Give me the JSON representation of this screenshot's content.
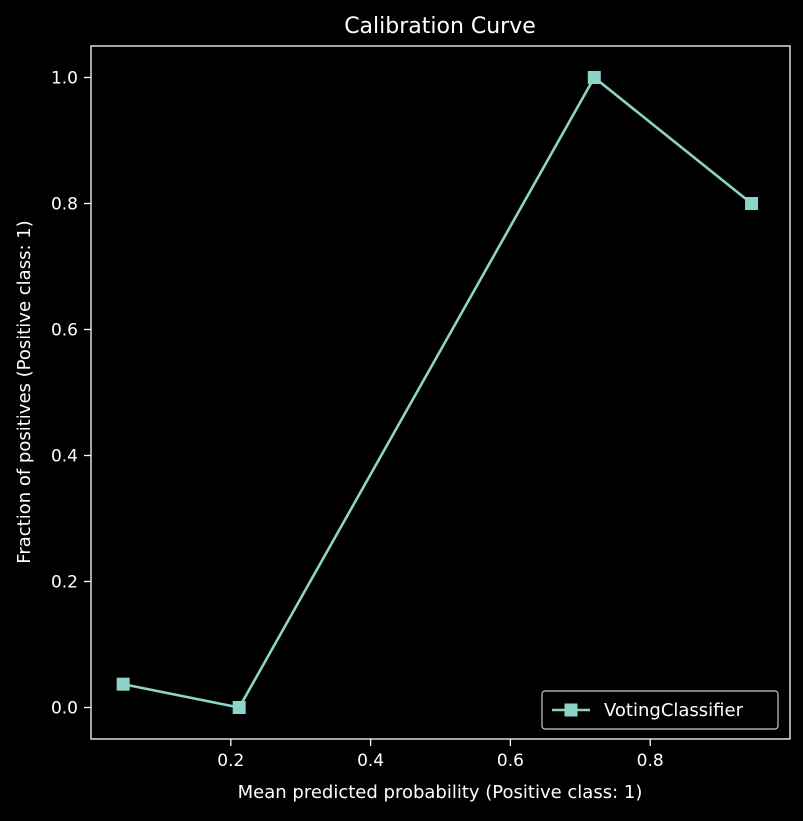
{
  "chart_data": {
    "type": "line",
    "title": "Calibration Curve",
    "xlabel": "Mean predicted probability (Positive class: 1)",
    "ylabel": "Fraction of positives (Positive class: 1)",
    "xlim": [
      0.0,
      1.0
    ],
    "ylim": [
      -0.05,
      1.05
    ],
    "x_ticks": [
      0.2,
      0.4,
      0.6,
      0.8
    ],
    "x_tick_labels": [
      "0.2",
      "0.4",
      "0.6",
      "0.8"
    ],
    "y_ticks": [
      0.0,
      0.2,
      0.4,
      0.6,
      0.8,
      1.0
    ],
    "y_tick_labels": [
      "0.0",
      "0.2",
      "0.4",
      "0.6",
      "0.8",
      "1.0"
    ],
    "grid": false,
    "legend_position": "lower-right",
    "series": [
      {
        "name": "VotingClassifier",
        "marker": "square",
        "color": "#8dd3c7",
        "x": [
          0.046,
          0.212,
          0.72,
          0.945
        ],
        "y": [
          0.037,
          0.0,
          1.0,
          0.8
        ]
      }
    ]
  },
  "colors": {
    "background": "#000000",
    "axes": "#ffffff",
    "text": "#ffffff",
    "series": "#8dd3c7"
  }
}
